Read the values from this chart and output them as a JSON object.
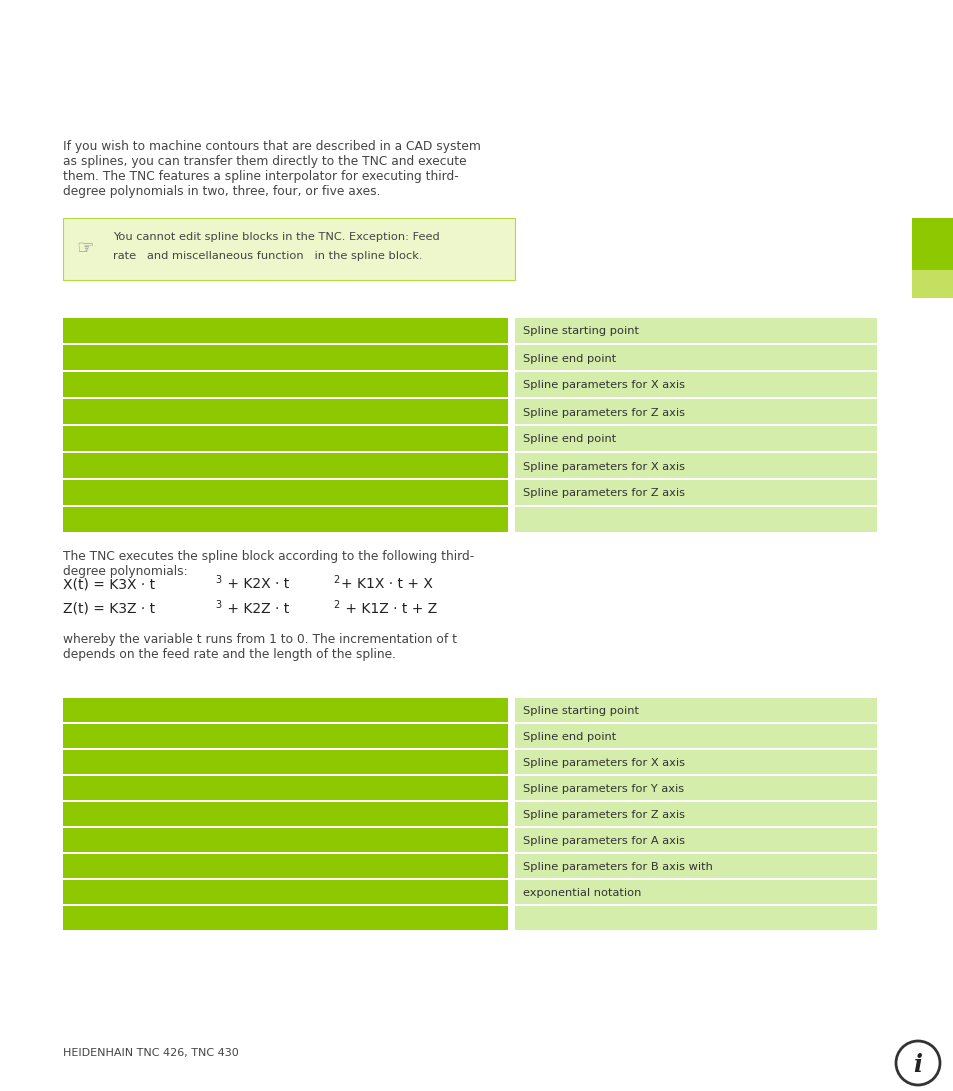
{
  "bg_color": "#ffffff",
  "dpi": 100,
  "fig_w": 9.54,
  "fig_h": 10.91,
  "green_bar_color": "#8dc800",
  "light_green_color": "#d4edaa",
  "note_bg": "#eef7cc",
  "note_border": "#b8d840",
  "intro_text_lines": [
    "If you wish to machine contours that are described in a CAD system",
    "as splines, you can transfer them directly to the TNC and execute",
    "them. The TNC features a spline interpolator for executing third-",
    "degree polynomials in two, three, four, or five axes."
  ],
  "note_line1": "You cannot edit spline blocks in the TNC. Exception: Feed",
  "note_line2": "rate   and miscellaneous function   in the spline block.",
  "table1_labels": [
    "Spline starting point",
    "Spline end point",
    "Spline parameters for X axis",
    "Spline parameters for Z axis",
    "Spline end point",
    "Spline parameters for X axis",
    "Spline parameters for Z axis",
    ""
  ],
  "mid_text_lines": [
    "The TNC executes the spline block according to the following third-",
    "degree polynomials:"
  ],
  "whereby_text_lines": [
    "whereby the variable t runs from 1 to 0. The incrementation of t",
    "depends on the feed rate and the length of the spline."
  ],
  "table2_labels": [
    "Spline starting point",
    "Spline end point",
    "Spline parameters for X axis",
    "Spline parameters for Y axis",
    "Spline parameters for Z axis",
    "Spline parameters for A axis",
    "Spline parameters for B axis with",
    "exponential notation",
    ""
  ],
  "footer_text": "HEIDENHAIN TNC 426, TNC 430",
  "accent_green": "#8dc800",
  "accent_light": "#c5e060",
  "text_color": "#444444",
  "formula_color": "#222222"
}
